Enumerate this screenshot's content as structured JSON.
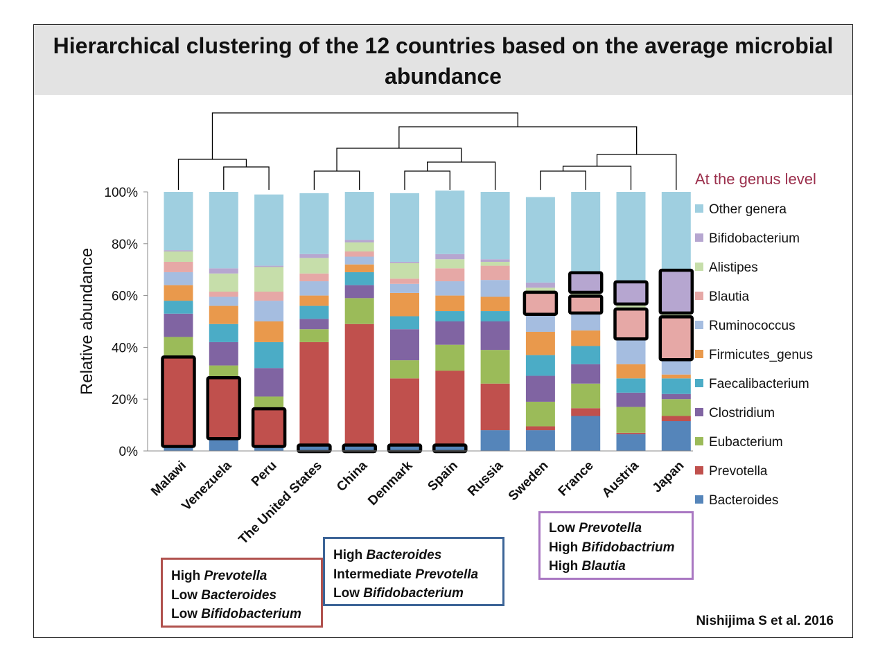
{
  "chart_data": {
    "type": "stacked_bar",
    "title": "Hierarchical clustering of the 12 countries based on the average microbial abundance",
    "ylabel": "Relative abundance",
    "ylim": [
      0,
      100
    ],
    "yticks": [
      "0%",
      "20%",
      "40%",
      "60%",
      "80%",
      "100%"
    ],
    "legend_title": "At the genus level",
    "legend_placement": "right",
    "categories": [
      "Malawi",
      "Venezuela",
      "Peru",
      "The United States",
      "China",
      "Denmark",
      "Spain",
      "Russia",
      "Sweden",
      "France",
      "Austria",
      "Japan"
    ],
    "series": [
      {
        "name": "Bacteroides",
        "color": "#5585ba",
        "values": [
          2,
          5,
          2,
          2,
          2,
          2,
          2,
          8,
          8,
          13.5,
          6.5,
          11.5
        ]
      },
      {
        "name": "Prevotella",
        "color": "#c0504d",
        "values": [
          34,
          23,
          14,
          40,
          47,
          26,
          29,
          18,
          1.5,
          3,
          0.5,
          2
        ]
      },
      {
        "name": "Eubacterium",
        "color": "#9bbb59",
        "values": [
          8,
          5,
          5,
          5,
          10,
          7,
          10,
          13,
          9.5,
          9.5,
          10,
          6.5
        ]
      },
      {
        "name": "Clostridium",
        "color": "#8064a2",
        "values": [
          9,
          9,
          11,
          4,
          5,
          12,
          9,
          11,
          10,
          7.5,
          5.5,
          2
        ]
      },
      {
        "name": "Faecalibacterium",
        "color": "#4bacc6",
        "values": [
          5,
          7,
          10,
          5,
          5,
          5,
          4,
          4,
          8,
          7,
          5.5,
          6
        ]
      },
      {
        "name": "Firmicutes_genus",
        "color": "#e9994c",
        "values": [
          6,
          7,
          8,
          4,
          3,
          9,
          6,
          5.5,
          9,
          6,
          5.5,
          1.5
        ]
      },
      {
        "name": "Ruminococcus",
        "color": "#a5bde0",
        "values": [
          5,
          3.5,
          8,
          5.5,
          3,
          3.5,
          5.5,
          6.5,
          7,
          7,
          10,
          6
        ]
      },
      {
        "name": "Blautia",
        "color": "#e6a8a6",
        "values": [
          4,
          2,
          3.5,
          3,
          2,
          2,
          5,
          5.5,
          8,
          6,
          11,
          16
        ]
      },
      {
        "name": "Alistipes",
        "color": "#c6deaa",
        "values": [
          4,
          7,
          9.5,
          6,
          3.5,
          6,
          3.5,
          1.5,
          2,
          2,
          2.5,
          2
        ]
      },
      {
        "name": "Bifidobacterium",
        "color": "#b6a6d0",
        "values": [
          0.5,
          2,
          0.5,
          1.5,
          1,
          0.5,
          2,
          1,
          2,
          7,
          8,
          16
        ]
      },
      {
        "name": "Other genera",
        "color": "#9fcfe0",
        "values": [
          22.5,
          29.5,
          27.5,
          23.5,
          18.5,
          26.5,
          24.5,
          26,
          33,
          31.5,
          35,
          30.5
        ]
      }
    ],
    "highlight_boxes": [
      {
        "country": "Malawi",
        "series": "Prevotella"
      },
      {
        "country": "Venezuela",
        "series": "Prevotella"
      },
      {
        "country": "Peru",
        "series": "Prevotella"
      },
      {
        "country": "The United States",
        "series": "Bacteroides"
      },
      {
        "country": "China",
        "series": "Bacteroides"
      },
      {
        "country": "Denmark",
        "series": "Bacteroides"
      },
      {
        "country": "Spain",
        "series": "Bacteroides"
      },
      {
        "country": "Sweden",
        "series": "Blautia"
      },
      {
        "country": "France",
        "series": "Bifidobacterium"
      },
      {
        "country": "France",
        "series": "Blautia"
      },
      {
        "country": "Austria",
        "series": "Bifidobacterium"
      },
      {
        "country": "Austria",
        "series": "Blautia"
      },
      {
        "country": "Japan",
        "series": "Bifidobacterium"
      },
      {
        "country": "Japan",
        "series": "Blautia"
      }
    ]
  },
  "notes": {
    "red": [
      {
        "plain": "High ",
        "italic": "Prevotella"
      },
      {
        "plain": "Low ",
        "italic": "Bacteroides"
      },
      {
        "plain": "Low ",
        "italic": "Bifidobacterium"
      }
    ],
    "blue": [
      {
        "plain": "High ",
        "italic": "Bacteroides"
      },
      {
        "plain": "Intermediate ",
        "italic": "Prevotella"
      },
      {
        "plain": "Low ",
        "italic": "Bifidobacterium"
      }
    ],
    "purple": [
      {
        "plain": "Low ",
        "italic": "Prevotella"
      },
      {
        "plain": "High ",
        "italic": "Bifidobactrium"
      },
      {
        "plain": "High ",
        "italic": "Blautia"
      }
    ]
  },
  "citation": "Nishijima S et al. 2016"
}
